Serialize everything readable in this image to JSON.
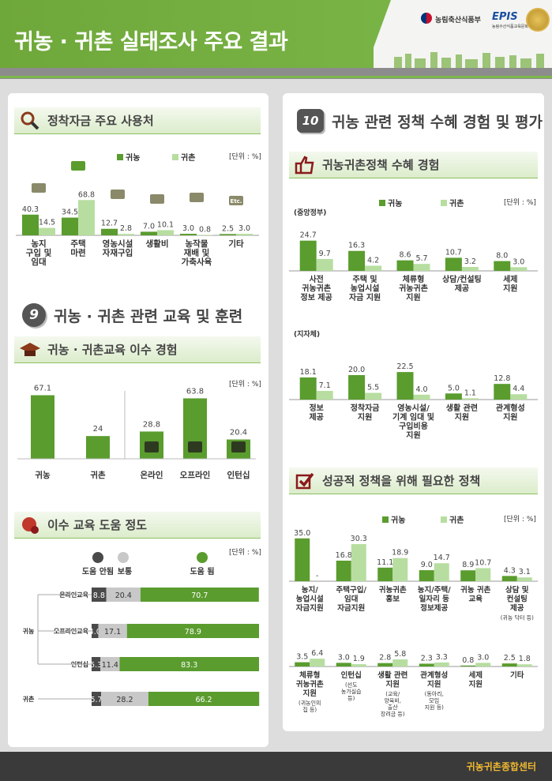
{
  "header": {
    "title": "귀농 · 귀촌 실태조사 주요 결과",
    "ministry": "농림축산식품부",
    "epis": "EPIS",
    "epis_sub": "농림수산식품교육문화정보원"
  },
  "colors": {
    "farm": "#5a9c2e",
    "rural": "#b7dea0",
    "dark": "#4a4a4a",
    "light_grey": "#c8c8c8",
    "green_light": "#7db84b"
  },
  "legend": {
    "farm": "귀농",
    "rural": "귀촌"
  },
  "unit": "[단위 : %]",
  "sec_fund": {
    "title": "정착자금 주요 사용처"
  },
  "sec9": {
    "num": "9",
    "title": "귀농 · 귀촌 관련 교육 및 훈련",
    "edu_title": "귀농 · 귀촌교육 이수 경험",
    "help_title": "이수 교육 도움 정도"
  },
  "sec10": {
    "num": "10",
    "title": "귀농 관련 정책 수혜 경험 및 평가",
    "benefit_title": "귀농귀촌정책 수혜 경험",
    "central": "(중앙정부)",
    "local": "(지자체)",
    "needed_title": "성공적 정책을 위해 필요한 정책"
  },
  "help_legend": {
    "no": "도움 안됨",
    "normal": "보통",
    "yes": "도움 됨"
  },
  "help_groups": {
    "farm": "귀농",
    "rural": "귀촌"
  },
  "footer": {
    "org": "귀농귀촌종합센터"
  },
  "chart_data": [
    {
      "id": "fund",
      "type": "bar",
      "title": "정착자금 주요 사용처",
      "categories": [
        "농지\n구입 및\n임대",
        "주택\n마련",
        "영농시설\n자재구입",
        "생활비",
        "농작물\n재배 및\n가축사육",
        "기타"
      ],
      "series": [
        {
          "name": "귀농",
          "values": [
            40.3,
            34.5,
            12.7,
            7.0,
            3.0,
            2.5
          ]
        },
        {
          "name": "귀촌",
          "values": [
            14.5,
            68.8,
            2.8,
            10.1,
            0.8,
            3.0
          ]
        }
      ],
      "value_labels": [
        [
          "40.3",
          "34.5",
          "12.7",
          "7.0",
          "3.0",
          "2.5"
        ],
        [
          "14.5",
          "68.8",
          "2.8",
          "10.1",
          "0.8",
          "3.0"
        ]
      ],
      "icon_labels": [
        "",
        "",
        "",
        "",
        "",
        "Etc."
      ]
    },
    {
      "id": "edu_type",
      "type": "bar",
      "title": "귀농 · 귀촌교육 이수 경험",
      "categories": [
        "귀농",
        "귀촌"
      ],
      "values": [
        67.1,
        24
      ],
      "value_labels": [
        "67.1",
        "24"
      ]
    },
    {
      "id": "edu_mode",
      "type": "bar",
      "categories": [
        "온라인",
        "오프라인",
        "인턴십"
      ],
      "values": [
        28.8,
        63.8,
        20.4
      ],
      "value_labels": [
        "28.8",
        "63.8",
        "20.4"
      ]
    },
    {
      "id": "help",
      "type": "bar",
      "title": "이수 교육 도움 정도",
      "stacked": true,
      "categories": [
        "온라인교육",
        "오프라인교육",
        "인턴십",
        "귀촌"
      ],
      "series": [
        {
          "name": "도움 안됨",
          "values": [
            8.8,
            4.0,
            5.3,
            5.7
          ]
        },
        {
          "name": "보통",
          "values": [
            20.4,
            17.1,
            11.4,
            28.2
          ]
        },
        {
          "name": "도움 됨",
          "values": [
            70.7,
            78.9,
            83.3,
            66.2
          ]
        }
      ],
      "value_labels": [
        [
          "8.8",
          "4.0",
          "5.3",
          "5.7"
        ],
        [
          "20.4",
          "17.1",
          "11.4",
          "28.2"
        ],
        [
          "70.7",
          "78.9",
          "83.3",
          "66.2"
        ]
      ]
    },
    {
      "id": "central",
      "type": "bar",
      "categories": [
        "사전\n귀농귀촌\n정보 제공",
        "주택 및\n농업시설\n자금 지원",
        "체류형\n귀농귀촌\n지원",
        "상담/컨설팅\n제공",
        "세제\n지원"
      ],
      "series": [
        {
          "name": "귀농",
          "values": [
            24.7,
            16.3,
            8.6,
            10.7,
            8.0
          ]
        },
        {
          "name": "귀촌",
          "values": [
            9.7,
            4.2,
            5.7,
            3.2,
            3.0
          ]
        }
      ],
      "value_labels": [
        [
          "24.7",
          "16.3",
          "8.6",
          "10.7",
          "8.0"
        ],
        [
          "9.7",
          "4.2",
          "5.7",
          "3.2",
          "3.0"
        ]
      ]
    },
    {
      "id": "local",
      "type": "bar",
      "categories": [
        "정보\n제공",
        "정착자금\n지원",
        "영농시설/\n기계 임대 및\n구입비용\n지원",
        "생활 관련\n지원",
        "관계형성\n지원"
      ],
      "series": [
        {
          "name": "귀농",
          "values": [
            18.1,
            20.0,
            22.5,
            5.0,
            12.8
          ]
        },
        {
          "name": "귀촌",
          "values": [
            7.1,
            5.5,
            4.0,
            1.1,
            4.4
          ]
        }
      ],
      "value_labels": [
        [
          "18.1",
          "20.0",
          "22.5",
          "5.0",
          "12.8"
        ],
        [
          "7.1",
          "5.5",
          "4.0",
          "1.1",
          "4.4"
        ]
      ]
    },
    {
      "id": "needed1",
      "type": "bar",
      "title": "성공적 정책을 위해 필요한 정책",
      "categories": [
        "농지/\n농업시설\n자금지원",
        "주택구입/\n임대\n자금지원",
        "귀농귀촌\n홍보",
        "농지/주택/\n일자리 등\n정보제공",
        "귀농 귀촌\n교육",
        "상담 및\n컨설팅\n제공"
      ],
      "notes": [
        "",
        "",
        "",
        "",
        "",
        "(귀농 닥터 등)"
      ],
      "series": [
        {
          "name": "귀농",
          "values": [
            35.0,
            16.8,
            11.1,
            9.0,
            8.9,
            4.3
          ]
        },
        {
          "name": "귀촌",
          "values": [
            null,
            30.3,
            18.9,
            14.7,
            10.7,
            3.1
          ]
        }
      ],
      "value_labels": [
        [
          "35.0",
          "16.8",
          "11.1",
          "9.0",
          "8.9",
          "4.3"
        ],
        [
          "-",
          "30.3",
          "18.9",
          "14.7",
          "10.7",
          "3.1"
        ]
      ]
    },
    {
      "id": "needed2",
      "type": "bar",
      "categories": [
        "체류형\n귀농귀촌\n지원",
        "인턴십",
        "생활 관련\n지원",
        "관계형성\n지원",
        "세제\n지원",
        "기타"
      ],
      "notes": [
        "(귀농인의\n집 등)",
        "(선도\n농가실습\n등)",
        "(교육/\n양육비,\n출산\n장려금 등)",
        "(동아리,\n모임\n지원 등)",
        "",
        ""
      ],
      "series": [
        {
          "name": "귀농",
          "values": [
            3.5,
            3.0,
            2.8,
            2.3,
            0.8,
            2.5
          ]
        },
        {
          "name": "귀촌",
          "values": [
            6.4,
            1.9,
            5.8,
            3.3,
            3.0,
            1.8
          ]
        }
      ],
      "value_labels": [
        [
          "3.5",
          "3.0",
          "2.8",
          "2.3",
          "0.8",
          "2.5"
        ],
        [
          "6.4",
          "1.9",
          "5.8",
          "3.3",
          "3.0",
          "1.8"
        ]
      ]
    }
  ]
}
